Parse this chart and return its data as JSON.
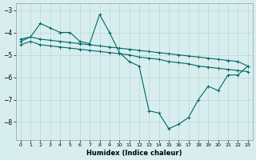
{
  "xlabel": "Humidex (Indice chaleur)",
  "bg_color": "#d8eeee",
  "grid_color": "#b8d8d8",
  "line_color": "#006666",
  "xlim": [
    -0.5,
    23.5
  ],
  "ylim": [
    -8.8,
    -2.7
  ],
  "yticks": [
    -8,
    -7,
    -6,
    -5,
    -4,
    -3
  ],
  "xticks": [
    0,
    1,
    2,
    3,
    4,
    5,
    6,
    7,
    8,
    9,
    10,
    11,
    12,
    13,
    14,
    15,
    16,
    17,
    18,
    19,
    20,
    21,
    22,
    23
  ],
  "line_jagged_x": [
    0,
    1,
    2,
    3,
    4,
    5,
    6,
    7,
    8,
    9,
    10,
    11,
    12,
    13,
    14,
    15,
    16,
    17,
    18,
    19,
    20,
    21,
    22,
    23
  ],
  "line_jagged_y": [
    -4.4,
    -4.2,
    -3.6,
    -3.8,
    -4.0,
    -4.0,
    -4.4,
    -4.5,
    -3.2,
    -4.0,
    -4.9,
    -5.3,
    -5.5,
    -7.5,
    -7.6,
    -8.3,
    -8.1,
    -7.8,
    -7.0,
    -6.4,
    -6.6,
    -5.9,
    -5.9,
    -5.5
  ],
  "line_upper_x": [
    0,
    1,
    2,
    3,
    4,
    5,
    6,
    7,
    8,
    9,
    10,
    11,
    12,
    13,
    14,
    15,
    16,
    17,
    18,
    19,
    20,
    21,
    22,
    23
  ],
  "line_upper_y": [
    -4.3,
    -4.2,
    -4.3,
    -4.35,
    -4.4,
    -4.45,
    -4.5,
    -4.55,
    -4.6,
    -4.65,
    -4.7,
    -4.75,
    -4.8,
    -4.85,
    -4.9,
    -4.95,
    -5.0,
    -5.05,
    -5.1,
    -5.15,
    -5.2,
    -5.25,
    -5.3,
    -5.5
  ],
  "line_lower_x": [
    0,
    1,
    2,
    3,
    4,
    5,
    6,
    7,
    8,
    9,
    10,
    11,
    12,
    13,
    14,
    15,
    16,
    17,
    18,
    19,
    20,
    21,
    22,
    23
  ],
  "line_lower_y": [
    -4.55,
    -4.4,
    -4.55,
    -4.6,
    -4.65,
    -4.7,
    -4.75,
    -4.8,
    -4.85,
    -4.9,
    -4.95,
    -5.0,
    -5.1,
    -5.15,
    -5.2,
    -5.3,
    -5.35,
    -5.4,
    -5.5,
    -5.55,
    -5.6,
    -5.65,
    -5.7,
    -5.75
  ]
}
